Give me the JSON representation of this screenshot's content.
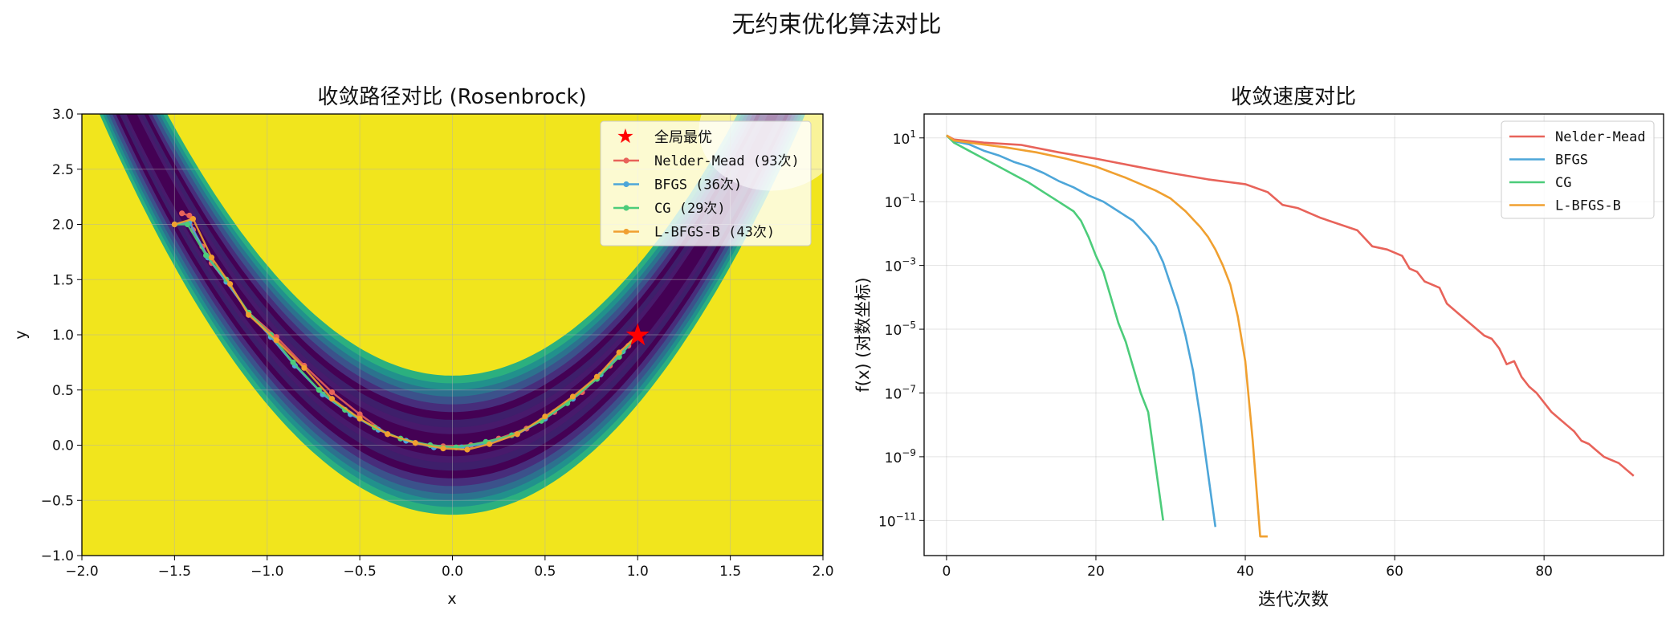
{
  "figure": {
    "suptitle": "无约束优化算法对比"
  },
  "chart_data": [
    {
      "type": "line",
      "title": "收敛路径对比 (Rosenbrock)",
      "xlabel": "x",
      "ylabel": "y",
      "xlim": [
        -2.0,
        2.0
      ],
      "ylim": [
        -1.0,
        3.0
      ],
      "xticks": [
        "−2.0",
        "−1.5",
        "−1.0",
        "−0.5",
        "0.0",
        "0.5",
        "1.0",
        "1.5",
        "2.0"
      ],
      "yticks": [
        "−1.0",
        "−0.5",
        "0.0",
        "0.5",
        "1.0",
        "1.5",
        "2.0",
        "2.5",
        "3.0"
      ],
      "grid": true,
      "background": "Rosenbrock contourf (viridis)",
      "legend_position": "upper right",
      "global_min": {
        "label": "全局最优",
        "x": 1.0,
        "y": 1.0,
        "color": "#ff0000",
        "marker": "star"
      },
      "series": [
        {
          "name": "Nelder-Mead (93次)",
          "color": "#e8635a",
          "x": [
            -1.46,
            -1.42,
            -1.4,
            -1.35,
            -1.3,
            -1.22,
            -1.1,
            -0.95,
            -0.8,
            -0.65,
            -0.5,
            -0.35,
            -0.2,
            -0.05,
            0.1,
            0.25,
            0.4,
            0.55,
            0.7,
            0.85,
            0.95,
            1.0
          ],
          "y": [
            2.1,
            2.08,
            1.95,
            1.8,
            1.65,
            1.48,
            1.2,
            0.98,
            0.72,
            0.48,
            0.28,
            0.1,
            0.02,
            -0.01,
            0.0,
            0.06,
            0.15,
            0.3,
            0.48,
            0.72,
            0.9,
            1.0
          ]
        },
        {
          "name": "BFGS (36次)",
          "color": "#4da6d9",
          "x": [
            -1.5,
            -1.42,
            -1.32,
            -1.22,
            -1.1,
            -0.98,
            -0.85,
            -0.7,
            -0.55,
            -0.4,
            -0.25,
            -0.1,
            0.05,
            0.2,
            0.35,
            0.5,
            0.65,
            0.8,
            0.92,
            1.0
          ],
          "y": [
            2.0,
            2.02,
            1.7,
            1.48,
            1.2,
            0.98,
            0.72,
            0.46,
            0.28,
            0.14,
            0.04,
            -0.02,
            -0.02,
            0.02,
            0.1,
            0.24,
            0.42,
            0.64,
            0.85,
            1.0
          ]
        },
        {
          "name": "CG (29次)",
          "color": "#4ccc7a",
          "x": [
            -1.5,
            -1.43,
            -1.33,
            -1.22,
            -1.1,
            -0.98,
            -0.86,
            -0.72,
            -0.58,
            -0.42,
            -0.28,
            -0.12,
            0.02,
            0.18,
            0.32,
            0.48,
            0.62,
            0.78,
            0.9,
            1.0
          ],
          "y": [
            2.0,
            2.0,
            1.72,
            1.5,
            1.2,
            1.0,
            0.75,
            0.5,
            0.32,
            0.16,
            0.06,
            0.0,
            -0.02,
            0.03,
            0.09,
            0.22,
            0.38,
            0.6,
            0.8,
            1.0
          ]
        },
        {
          "name": "L-BFGS-B (43次)",
          "color": "#f0a030",
          "x": [
            -1.5,
            -1.4,
            -1.3,
            -1.2,
            -1.1,
            -0.95,
            -0.8,
            -0.65,
            -0.5,
            -0.35,
            -0.2,
            -0.05,
            0.08,
            0.2,
            0.35,
            0.5,
            0.65,
            0.78,
            0.9,
            1.0
          ],
          "y": [
            2.0,
            2.05,
            1.7,
            1.46,
            1.18,
            0.95,
            0.7,
            0.42,
            0.24,
            0.1,
            0.02,
            -0.03,
            -0.04,
            0.01,
            0.1,
            0.26,
            0.44,
            0.62,
            0.84,
            1.0
          ]
        }
      ]
    },
    {
      "type": "line",
      "title": "收敛速度对比",
      "xlabel": "迭代次数",
      "ylabel": "f(x) (对数坐标)",
      "yscale": "log",
      "xlim": [
        -3,
        96
      ],
      "ylim_log10": [
        -12.1,
        1.75
      ],
      "xticks": [
        0,
        20,
        40,
        60,
        80
      ],
      "yticks": [
        {
          "base": "10",
          "exp": "1",
          "value": 1
        },
        {
          "base": "10",
          "exp": "−1",
          "value": -1
        },
        {
          "base": "10",
          "exp": "−3",
          "value": -3
        },
        {
          "base": "10",
          "exp": "−5",
          "value": -5
        },
        {
          "base": "10",
          "exp": "−7",
          "value": -7
        },
        {
          "base": "10",
          "exp": "−9",
          "value": -9
        },
        {
          "base": "10",
          "exp": "−11",
          "value": -11
        }
      ],
      "grid": true,
      "legend_position": "upper right",
      "series": [
        {
          "name": "Nelder-Mead",
          "color": "#e8635a",
          "x": [
            0,
            1,
            5,
            10,
            15,
            20,
            25,
            30,
            35,
            40,
            43,
            45,
            47,
            50,
            55,
            57,
            59,
            61,
            62,
            63,
            64,
            66,
            67,
            69,
            70,
            72,
            73,
            74,
            75,
            76,
            77,
            78,
            79,
            80,
            81,
            82,
            83,
            84,
            85,
            86,
            87,
            88,
            89,
            90,
            91,
            92
          ],
          "log10y": [
            1.08,
            0.95,
            0.85,
            0.78,
            0.55,
            0.35,
            0.12,
            -0.1,
            -0.3,
            -0.45,
            -0.7,
            -1.1,
            -1.2,
            -1.5,
            -1.9,
            -2.4,
            -2.5,
            -2.7,
            -3.1,
            -3.2,
            -3.5,
            -3.7,
            -4.2,
            -4.6,
            -4.8,
            -5.2,
            -5.3,
            -5.6,
            -6.1,
            -6.0,
            -6.5,
            -6.8,
            -7.0,
            -7.3,
            -7.6,
            -7.8,
            -8.0,
            -8.2,
            -8.5,
            -8.6,
            -8.8,
            -9.0,
            -9.1,
            -9.2,
            -9.4,
            -9.6
          ]
        },
        {
          "name": "BFGS",
          "color": "#4da6d9",
          "x": [
            0,
            1,
            3,
            5,
            7,
            9,
            11,
            13,
            15,
            17,
            19,
            21,
            23,
            24,
            25,
            26,
            27,
            28,
            29,
            30,
            31,
            32,
            33,
            34,
            35,
            36
          ],
          "log10y": [
            1.08,
            0.9,
            0.8,
            0.6,
            0.45,
            0.25,
            0.1,
            -0.1,
            -0.35,
            -0.55,
            -0.8,
            -1.0,
            -1.3,
            -1.45,
            -1.6,
            -1.85,
            -2.1,
            -2.4,
            -2.9,
            -3.6,
            -4.3,
            -5.2,
            -6.3,
            -7.8,
            -9.5,
            -11.2
          ]
        },
        {
          "name": "CG",
          "color": "#4ccc7a",
          "x": [
            0,
            1,
            3,
            5,
            7,
            9,
            11,
            13,
            15,
            17,
            18,
            19,
            20,
            21,
            22,
            23,
            24,
            25,
            26,
            27,
            28,
            29
          ],
          "log10y": [
            1.08,
            0.85,
            0.6,
            0.35,
            0.1,
            -0.15,
            -0.4,
            -0.7,
            -1.0,
            -1.3,
            -1.6,
            -2.1,
            -2.7,
            -3.2,
            -4.0,
            -4.8,
            -5.4,
            -6.2,
            -7.0,
            -7.6,
            -9.3,
            -11.0
          ]
        },
        {
          "name": "L-BFGS-B",
          "color": "#f0a030",
          "x": [
            0,
            1,
            4,
            8,
            12,
            16,
            20,
            24,
            28,
            30,
            32,
            34,
            35,
            36,
            37,
            38,
            39,
            40,
            41,
            42,
            43
          ],
          "log10y": [
            1.08,
            0.92,
            0.82,
            0.7,
            0.55,
            0.35,
            0.1,
            -0.25,
            -0.65,
            -0.9,
            -1.3,
            -1.8,
            -2.1,
            -2.5,
            -3.0,
            -3.6,
            -4.6,
            -6.0,
            -8.5,
            -11.5,
            -11.5
          ]
        }
      ]
    }
  ]
}
